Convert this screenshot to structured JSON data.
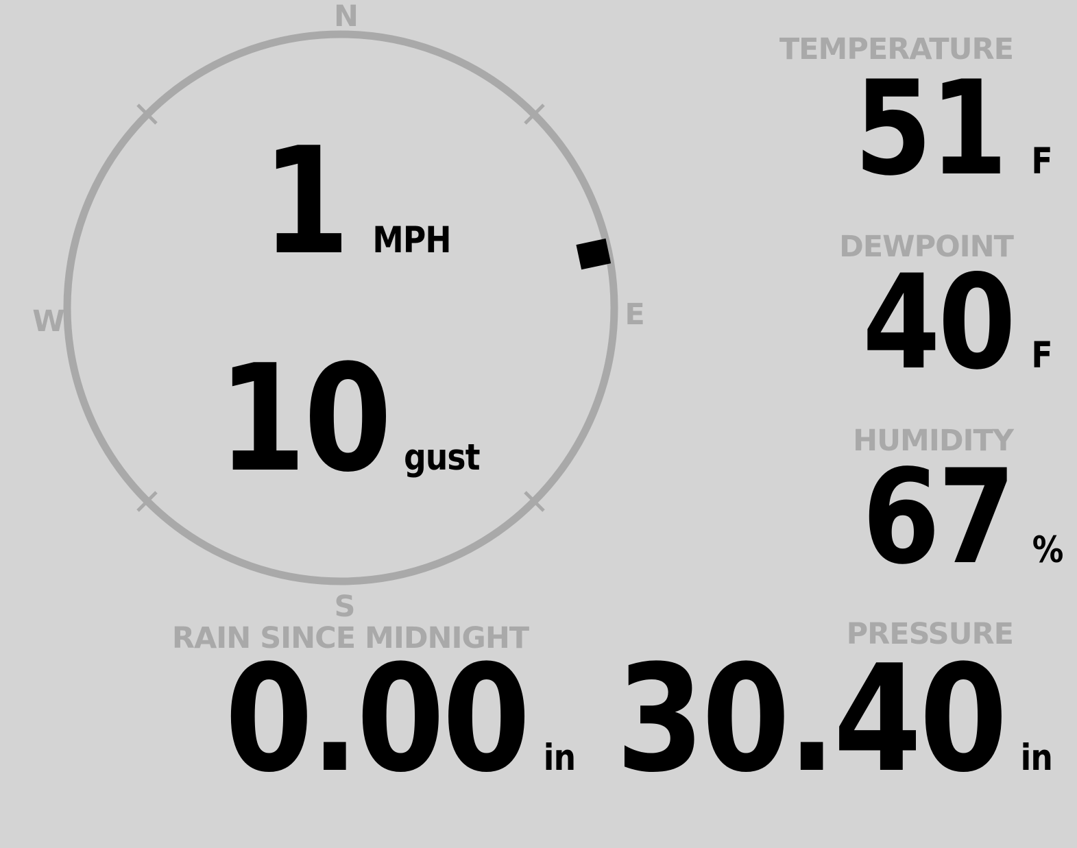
{
  "theme": {
    "background": "#d4d4d4",
    "muted_gray": "#a9a9a9",
    "value_black": "#000000"
  },
  "compass": {
    "north": "N",
    "east": "E",
    "south": "S",
    "west": "W",
    "wind_direction_deg": 78
  },
  "wind": {
    "speed_value": "1",
    "speed_unit": "MPH",
    "gust_value": "10",
    "gust_unit": "gust"
  },
  "temperature": {
    "label": "TEMPERATURE",
    "value": "51",
    "unit": "F"
  },
  "dewpoint": {
    "label": "DEWPOINT",
    "value": "40",
    "unit": "F"
  },
  "humidity": {
    "label": "HUMIDITY",
    "value": "67",
    "unit": "%"
  },
  "rain": {
    "label": "RAIN SINCE MIDNIGHT",
    "value": "0.00",
    "unit": "in"
  },
  "pressure": {
    "label": "PRESSURE",
    "value": "30.40",
    "unit": "in"
  }
}
